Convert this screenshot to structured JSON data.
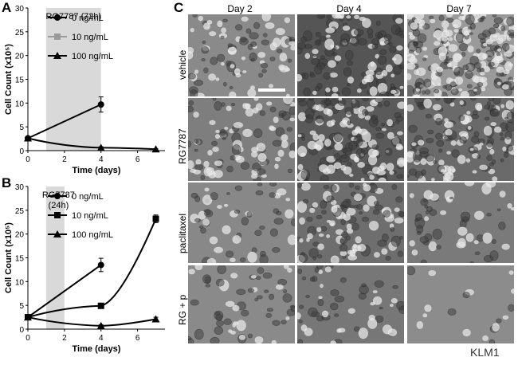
{
  "figure": {
    "cell_line_label": "KLM1",
    "panel_letters": {
      "a": "A",
      "b": "B",
      "c": "C"
    }
  },
  "chart_data": [
    {
      "type": "line",
      "panel": "A",
      "xlabel": "Time (days)",
      "ylabel": "Cell Count (x10⁵)",
      "xlim": [
        0,
        7.5
      ],
      "ylim": [
        0,
        30
      ],
      "xticks": [
        0,
        2,
        4,
        6
      ],
      "yticks": [
        0,
        5,
        10,
        15,
        20,
        25,
        30
      ],
      "shaded_region": {
        "x0": 1,
        "x1": 4,
        "label": "RG7787 (72h)"
      },
      "legend": "top-left",
      "series": [
        {
          "name": "0 ng/mL",
          "marker": "circle",
          "x": [
            0,
            4
          ],
          "y": [
            2.6,
            9.7
          ],
          "err": [
            0,
            1.6
          ]
        },
        {
          "name": "10 ng/mL",
          "marker": "square",
          "color": "#9a9a9a",
          "x": [],
          "y": [],
          "err": []
        },
        {
          "name": "100 ng/mL",
          "marker": "triangle",
          "x": [
            0,
            4,
            7
          ],
          "y": [
            2.6,
            0.6,
            0.3
          ],
          "err": [
            0,
            0.2,
            0.1
          ]
        }
      ]
    },
    {
      "type": "line",
      "panel": "B",
      "xlabel": "Time (days)",
      "ylabel": "Cell Count (x10⁵)",
      "xlim": [
        0,
        7.5
      ],
      "ylim": [
        0,
        30
      ],
      "xticks": [
        0,
        2,
        4,
        6
      ],
      "yticks": [
        0,
        5,
        10,
        15,
        20,
        25,
        30
      ],
      "shaded_region": {
        "x0": 1,
        "x1": 2,
        "label_lines": [
          "RG7787",
          "(24h)"
        ]
      },
      "legend": "top-left",
      "series": [
        {
          "name": "0 ng/mL",
          "marker": "circle",
          "x": [
            0,
            4
          ],
          "y": [
            2.5,
            13.5
          ],
          "err": [
            0,
            1.4
          ]
        },
        {
          "name": "10 ng/mL",
          "marker": "square",
          "x": [
            0,
            4,
            7
          ],
          "y": [
            2.5,
            4.9,
            23.2
          ],
          "err": [
            0,
            0.3,
            0.8
          ]
        },
        {
          "name": "100 ng/mL",
          "marker": "triangle",
          "x": [
            0,
            4,
            7
          ],
          "y": [
            2.5,
            0.7,
            2.1
          ],
          "err": [
            0,
            0.2,
            0.4
          ]
        }
      ]
    }
  ],
  "micrographs": {
    "days": [
      "Day 2",
      "Day 4",
      "Day 7"
    ],
    "treatments": [
      "vehicle",
      "RG7787",
      "paclitaxel",
      "RG + p"
    ]
  }
}
